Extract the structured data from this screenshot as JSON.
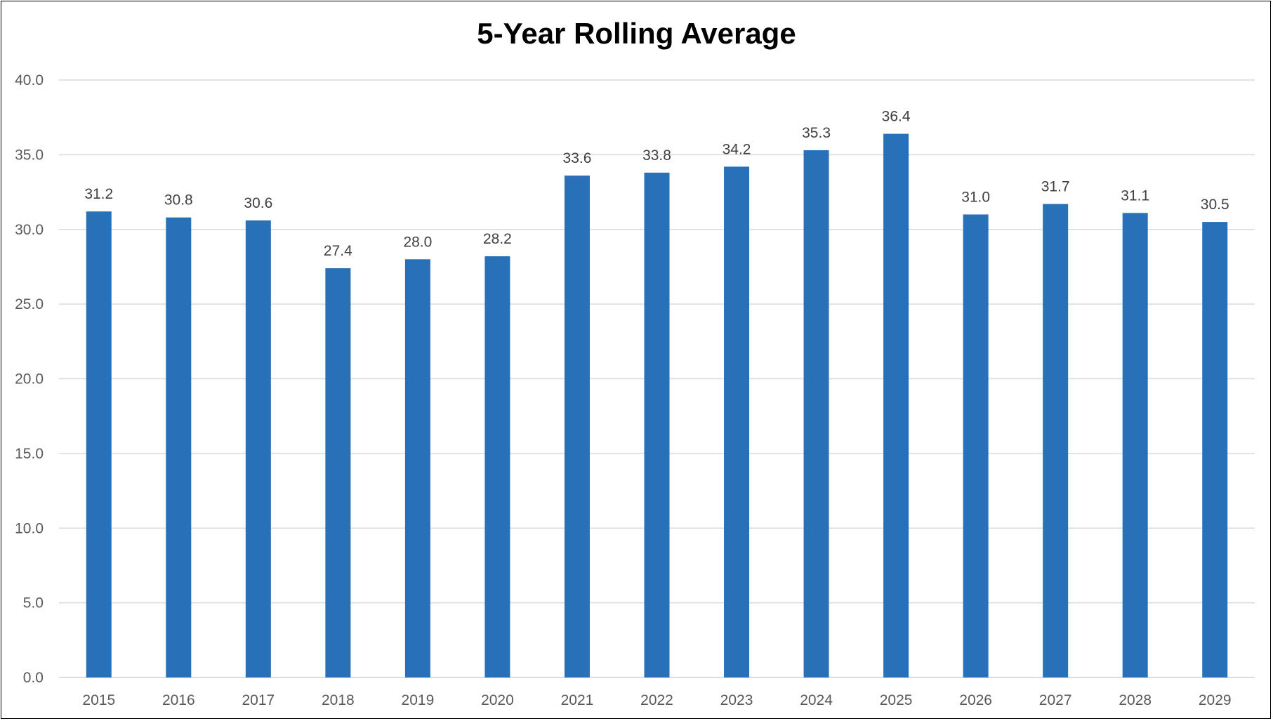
{
  "chart_data": {
    "type": "bar",
    "title": "5-Year Rolling Average",
    "xlabel": "",
    "ylabel": "",
    "categories": [
      "2015",
      "2016",
      "2017",
      "2018",
      "2019",
      "2020",
      "2021",
      "2022",
      "2023",
      "2024",
      "2025",
      "2026",
      "2027",
      "2028",
      "2029"
    ],
    "values": [
      31.2,
      30.8,
      30.6,
      27.4,
      28.0,
      28.2,
      33.6,
      33.8,
      34.2,
      35.3,
      36.4,
      31.0,
      31.7,
      31.1,
      30.5
    ],
    "value_labels": [
      "31.2",
      "30.8",
      "30.6",
      "27.4",
      "28.0",
      "28.2",
      "33.6",
      "33.8",
      "34.2",
      "35.3",
      "36.4",
      "31.0",
      "31.7",
      "31.1",
      "30.5"
    ],
    "ylim": [
      0,
      40
    ],
    "yticks": [
      "0.0",
      "5.0",
      "10.0",
      "15.0",
      "20.0",
      "25.0",
      "30.0",
      "35.0",
      "40.0"
    ],
    "ytick_values": [
      0,
      5,
      10,
      15,
      20,
      25,
      30,
      35,
      40
    ],
    "grid": true,
    "legend": "none",
    "bar_color": "#2871b8"
  }
}
